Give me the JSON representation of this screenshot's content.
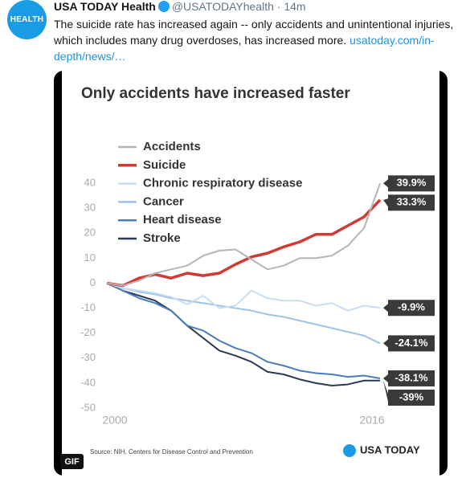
{
  "tweet": {
    "avatar_label": "HEALTH",
    "name": "USA TODAY Health",
    "handle": "@USATODAYhealth",
    "time": "14m",
    "text": "The suicide rate has increased again -- only accidents and unintentional injuries, which includes many drug overdoses, has increased more.",
    "link": "usatoday.com/in-depth/news/…",
    "media_badge": "GIF"
  },
  "chart_data": {
    "type": "line",
    "title": "Only accidents have increased faster",
    "x": [
      1999,
      2000,
      2001,
      2002,
      2003,
      2004,
      2005,
      2006,
      2007,
      2008,
      2009,
      2010,
      2011,
      2012,
      2013,
      2014,
      2015,
      2016
    ],
    "xlim": [
      1999,
      2016
    ],
    "xticks": [
      2000,
      2016
    ],
    "ylim": [
      -50,
      40
    ],
    "yticks": [
      40,
      30,
      20,
      10,
      0,
      -10,
      -20,
      -30,
      -40,
      -50
    ],
    "grid": false,
    "series": [
      {
        "name": "Accidents",
        "color": "#b5b5b5",
        "values": [
          0,
          -1,
          1,
          4,
          5.5,
          7,
          11,
          13,
          13.5,
          9.5,
          5.5,
          7,
          10,
          10,
          11,
          15,
          22,
          39.9
        ],
        "value_labels": [
          null,
          null,
          null,
          null,
          null,
          null,
          null,
          null,
          null,
          null,
          null,
          null,
          null,
          null,
          null,
          null,
          null,
          "39.9%"
        ]
      },
      {
        "name": "Suicide",
        "color": "#d03a35",
        "values": [
          0,
          -1,
          2,
          3.5,
          2,
          4,
          3,
          4,
          7.5,
          10.5,
          12,
          14.5,
          16.5,
          19.5,
          19.5,
          23,
          26.5,
          33.3
        ],
        "value_labels": [
          null,
          null,
          null,
          null,
          null,
          null,
          null,
          null,
          null,
          null,
          null,
          null,
          null,
          null,
          null,
          null,
          null,
          "33.3%"
        ]
      },
      {
        "name": "Chronic respiratory disease",
        "color": "#c6ddf3",
        "values": [
          0,
          -2,
          -3,
          -4,
          -5.5,
          -8.5,
          -5,
          -10,
          -9,
          -3,
          -6,
          -7,
          -7,
          -9,
          -8,
          -11,
          -9,
          -9.9
        ],
        "value_labels": [
          null,
          null,
          null,
          null,
          null,
          null,
          null,
          null,
          null,
          null,
          null,
          null,
          null,
          null,
          null,
          null,
          null,
          "-9.9%"
        ]
      },
      {
        "name": "Cancer",
        "color": "#9cc3e8",
        "values": [
          0,
          -2,
          -3.5,
          -4.5,
          -6,
          -7,
          -8,
          -9,
          -10,
          -11,
          -12.5,
          -13.5,
          -15,
          -16.5,
          -18,
          -19.5,
          -21,
          -24.1
        ],
        "value_labels": [
          null,
          null,
          null,
          null,
          null,
          null,
          null,
          null,
          null,
          null,
          null,
          null,
          null,
          null,
          null,
          null,
          null,
          "-24.1%"
        ]
      },
      {
        "name": "Heart disease",
        "color": "#4b7bbd",
        "values": [
          0,
          -3,
          -6,
          -8,
          -11,
          -17,
          -19,
          -23,
          -26,
          -28,
          -31.5,
          -33,
          -35,
          -36,
          -36.5,
          -37.5,
          -37,
          -38.1
        ],
        "value_labels": [
          null,
          null,
          null,
          null,
          null,
          null,
          null,
          null,
          null,
          null,
          null,
          null,
          null,
          null,
          null,
          null,
          null,
          "-38.1%"
        ]
      },
      {
        "name": "Stroke",
        "color": "#2a3a55",
        "values": [
          0,
          -3,
          -5,
          -7,
          -11,
          -17,
          -22,
          -27,
          -29,
          -31.5,
          -35.5,
          -36.5,
          -38.5,
          -40,
          -41,
          -40.5,
          -39,
          -39
        ],
        "value_labels": [
          null,
          null,
          null,
          null,
          null,
          null,
          null,
          null,
          null,
          null,
          null,
          null,
          null,
          null,
          null,
          null,
          null,
          "-39%"
        ]
      }
    ],
    "source": "Source: NIH, Centers for Disease Control and Prevention",
    "logo": "USA TODAY"
  }
}
